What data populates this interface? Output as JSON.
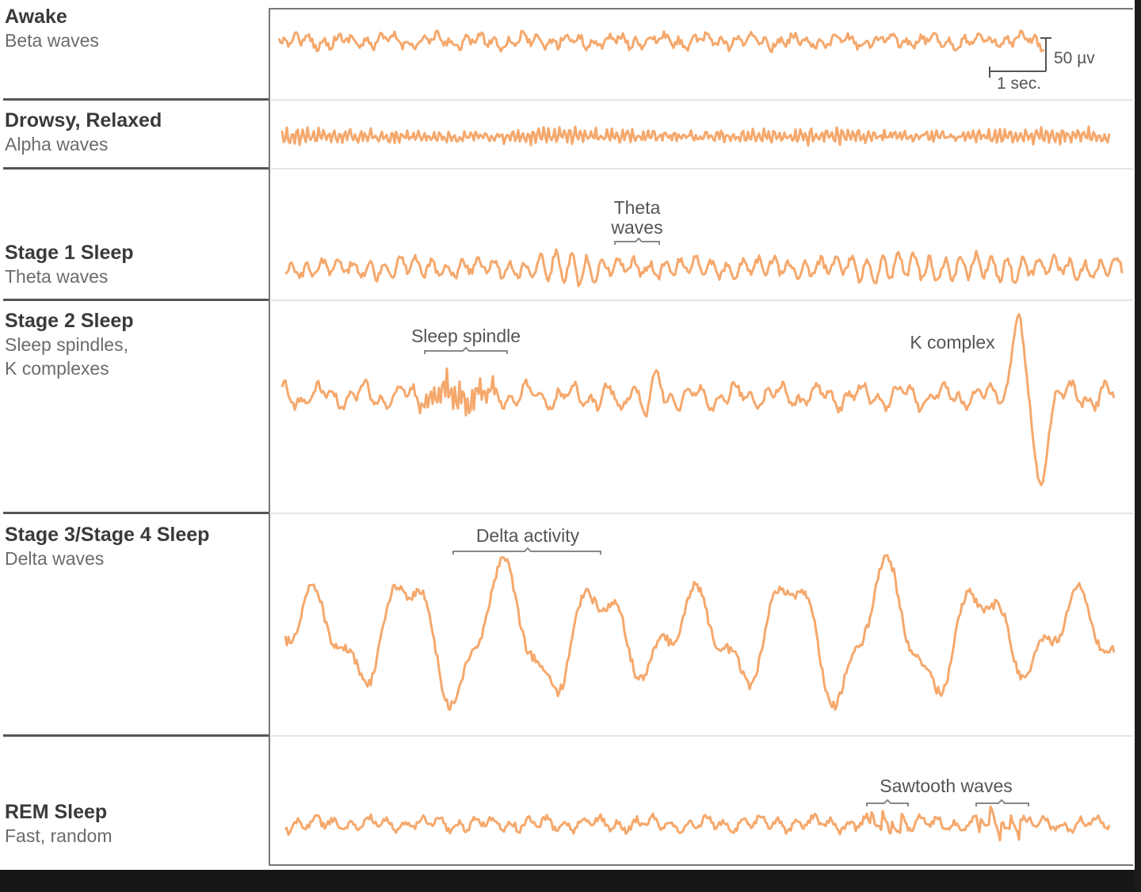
{
  "stages": [
    {
      "title": "Awake",
      "subtitle": "Beta waves"
    },
    {
      "title": "Drowsy, Relaxed",
      "subtitle": "Alpha waves"
    },
    {
      "title": "Stage 1 Sleep",
      "subtitle": "Theta waves"
    },
    {
      "title": "Stage 2 Sleep",
      "subtitle": "Sleep spindles,",
      "subtitle2": "K complexes"
    },
    {
      "title": "Stage 3/Stage 4 Sleep",
      "subtitle": "Delta waves"
    },
    {
      "title": "REM Sleep",
      "subtitle": "Fast, random"
    }
  ],
  "scale_bar": {
    "amplitude": "50 µv",
    "time": "1 sec."
  },
  "annotations": {
    "theta_line1": "Theta",
    "theta_line2": "waves",
    "sleep_spindle": "Sleep spindle",
    "k_complex": "K complex",
    "delta_activity": "Delta activity",
    "sawtooth_waves": "Sawtooth waves"
  },
  "colors": {
    "wave": "#f5a86c",
    "divider": "#555555",
    "background": "#ffffff"
  }
}
